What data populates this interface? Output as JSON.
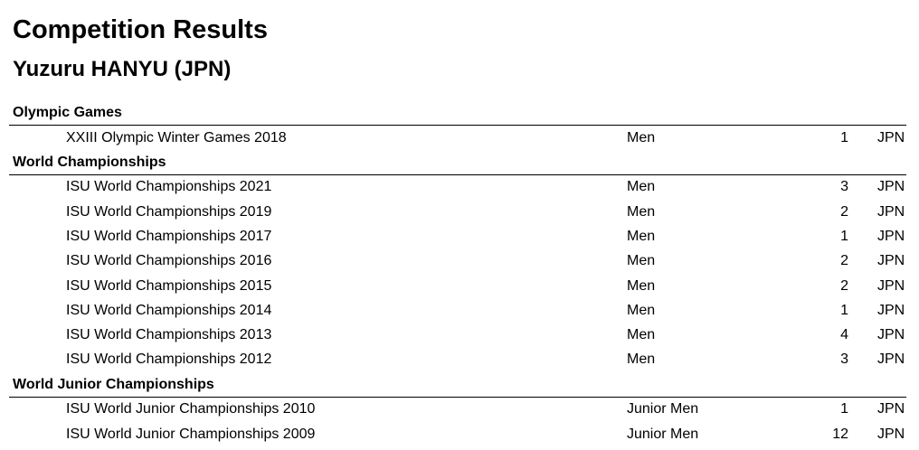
{
  "header": {
    "title": "Competition Results",
    "subtitle": "Yuzuru HANYU (JPN)"
  },
  "sections": [
    {
      "name": "Olympic Games",
      "rows": [
        [
          "XXIII Olympic Winter Games 2018",
          "Men",
          1,
          "JPN"
        ]
      ]
    },
    {
      "name": "World Championships",
      "rows": [
        [
          "ISU World Championships 2021",
          "Men",
          3,
          "JPN"
        ],
        [
          "ISU World Championships 2019",
          "Men",
          2,
          "JPN"
        ],
        [
          "ISU World Championships 2017",
          "Men",
          1,
          "JPN"
        ],
        [
          "ISU World Championships 2016",
          "Men",
          2,
          "JPN"
        ],
        [
          "ISU World Championships 2015",
          "Men",
          2,
          "JPN"
        ],
        [
          "ISU World Championships 2014",
          "Men",
          1,
          "JPN"
        ],
        [
          "ISU World Championships 2013",
          "Men",
          4,
          "JPN"
        ],
        [
          "ISU World Championships 2012",
          "Men",
          3,
          "JPN"
        ]
      ]
    },
    {
      "name": "World Junior Championships",
      "rows": [
        [
          "ISU World Junior Championships 2010",
          "Junior Men",
          1,
          "JPN"
        ],
        [
          "ISU World Junior Championships 2009",
          "Junior Men",
          12,
          "JPN"
        ]
      ]
    }
  ]
}
